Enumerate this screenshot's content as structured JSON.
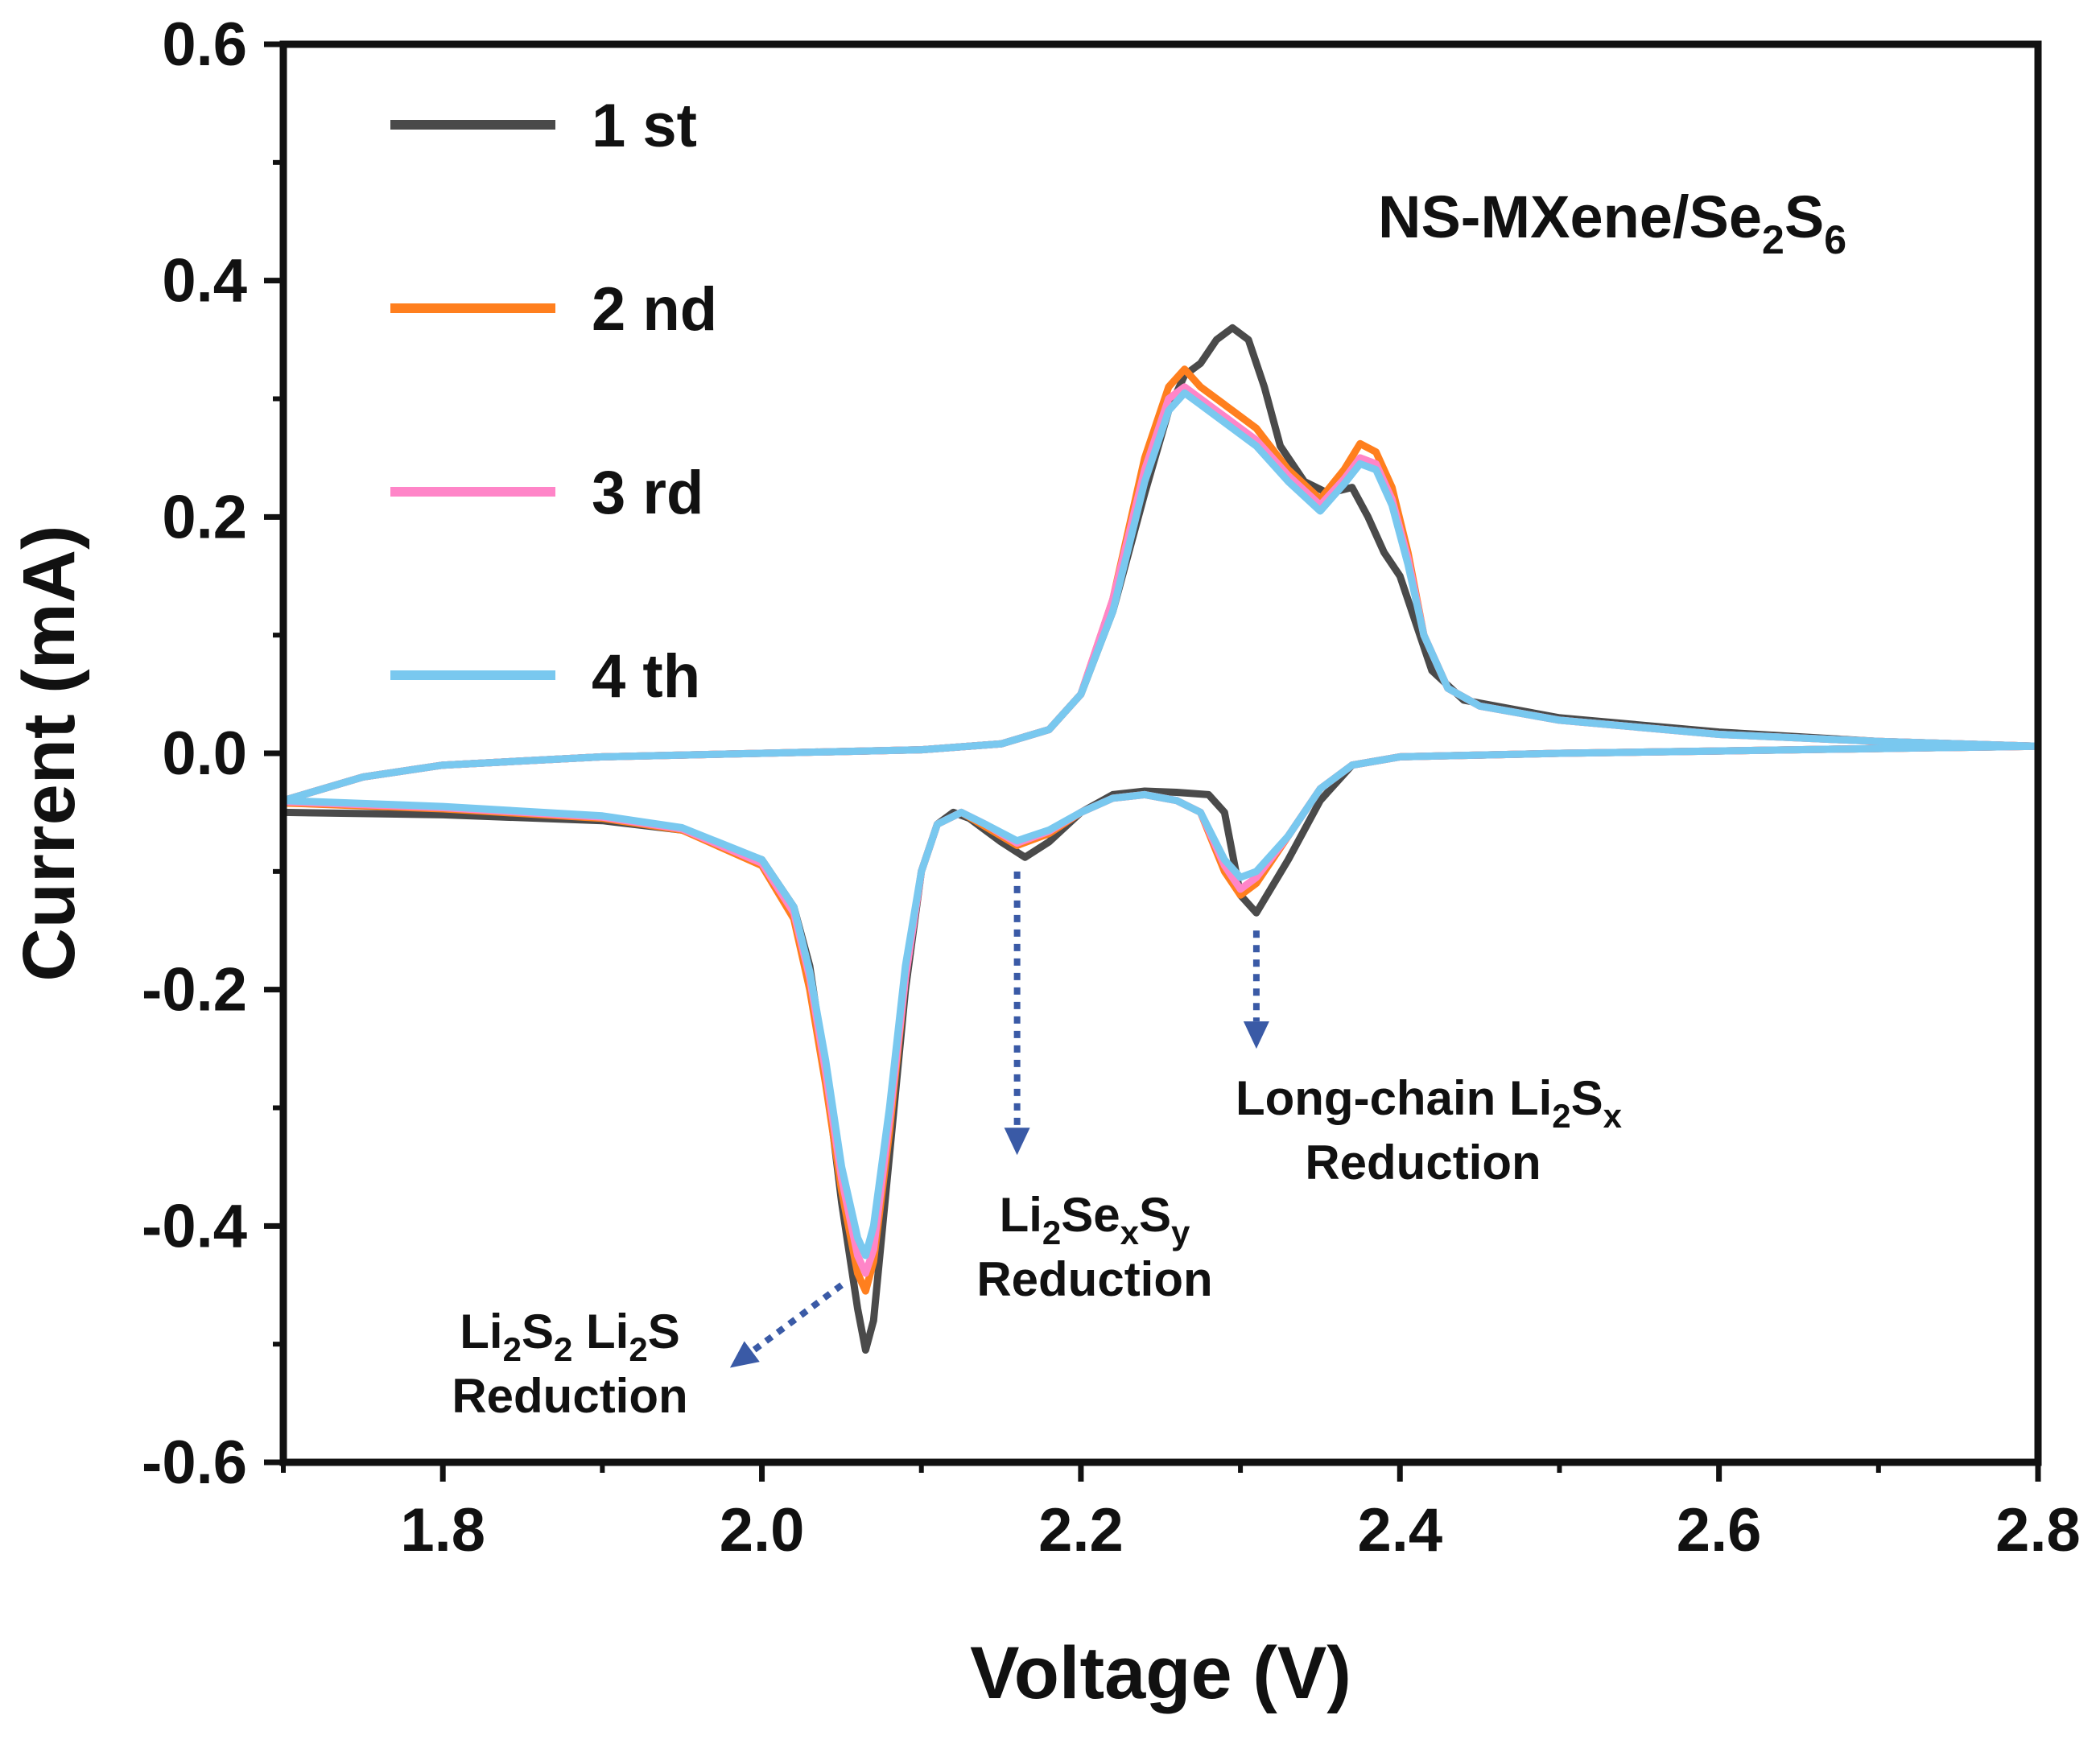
{
  "chart_data": {
    "type": "line",
    "title": "",
    "xlabel": "Voltage (V)",
    "ylabel": "Current (mA)",
    "xlim": [
      1.7,
      2.8
    ],
    "ylim": [
      -0.6,
      0.6
    ],
    "grid": false,
    "legend_position": "top-left",
    "x_ticks": [
      1.8,
      2.0,
      2.2,
      2.4,
      2.6,
      2.8
    ],
    "x_tick_labels": [
      "1.8",
      "2.0",
      "2.2",
      "2.4",
      "2.6",
      "2.8"
    ],
    "y_ticks": [
      0.6,
      0.4,
      0.2,
      0.0,
      -0.2,
      -0.4,
      -0.6
    ],
    "y_tick_labels": [
      "0.6",
      "0.4",
      "0.2",
      "0.0",
      "-0.2",
      "-0.4",
      "-0.6"
    ],
    "sample_label": {
      "main": "NS-MXene/Se",
      "sub1": "2",
      "mid": "S",
      "sub2": "6"
    },
    "series": [
      {
        "name": "1 st",
        "color": "#4a4a4a",
        "anodic": [
          [
            1.7,
            -0.04
          ],
          [
            1.75,
            -0.02
          ],
          [
            1.8,
            -0.01
          ],
          [
            1.9,
            -0.003
          ],
          [
            2.0,
            0.0
          ],
          [
            2.1,
            0.003
          ],
          [
            2.15,
            0.008
          ],
          [
            2.18,
            0.02
          ],
          [
            2.2,
            0.05
          ],
          [
            2.22,
            0.12
          ],
          [
            2.24,
            0.22
          ],
          [
            2.255,
            0.29
          ],
          [
            2.265,
            0.32
          ],
          [
            2.275,
            0.33
          ],
          [
            2.285,
            0.35
          ],
          [
            2.295,
            0.36
          ],
          [
            2.305,
            0.35
          ],
          [
            2.315,
            0.31
          ],
          [
            2.325,
            0.26
          ],
          [
            2.34,
            0.23
          ],
          [
            2.355,
            0.22
          ],
          [
            2.37,
            0.225
          ],
          [
            2.38,
            0.2
          ],
          [
            2.39,
            0.17
          ],
          [
            2.4,
            0.15
          ],
          [
            2.41,
            0.11
          ],
          [
            2.42,
            0.07
          ],
          [
            2.44,
            0.045
          ],
          [
            2.5,
            0.03
          ],
          [
            2.6,
            0.018
          ],
          [
            2.7,
            0.01
          ],
          [
            2.8,
            0.006
          ]
        ],
        "cathodic": [
          [
            2.8,
            0.006
          ],
          [
            2.7,
            0.004
          ],
          [
            2.6,
            0.002
          ],
          [
            2.5,
            0.0
          ],
          [
            2.4,
            -0.003
          ],
          [
            2.37,
            -0.01
          ],
          [
            2.35,
            -0.04
          ],
          [
            2.33,
            -0.09
          ],
          [
            2.31,
            -0.135
          ],
          [
            2.3,
            -0.12
          ],
          [
            2.29,
            -0.05
          ],
          [
            2.28,
            -0.035
          ],
          [
            2.26,
            -0.033
          ],
          [
            2.24,
            -0.032
          ],
          [
            2.22,
            -0.035
          ],
          [
            2.2,
            -0.05
          ],
          [
            2.18,
            -0.075
          ],
          [
            2.165,
            -0.088
          ],
          [
            2.15,
            -0.075
          ],
          [
            2.13,
            -0.055
          ],
          [
            2.12,
            -0.05
          ],
          [
            2.11,
            -0.06
          ],
          [
            2.1,
            -0.1
          ],
          [
            2.09,
            -0.2
          ],
          [
            2.08,
            -0.34
          ],
          [
            2.07,
            -0.48
          ],
          [
            2.065,
            -0.505
          ],
          [
            2.06,
            -0.47
          ],
          [
            2.05,
            -0.38
          ],
          [
            2.04,
            -0.27
          ],
          [
            2.03,
            -0.18
          ],
          [
            2.02,
            -0.13
          ],
          [
            2.0,
            -0.09
          ],
          [
            1.95,
            -0.065
          ],
          [
            1.9,
            -0.057
          ],
          [
            1.8,
            -0.052
          ],
          [
            1.7,
            -0.05
          ]
        ]
      },
      {
        "name": "2 nd",
        "color": "#ff7f1e",
        "anodic": [
          [
            1.7,
            -0.04
          ],
          [
            1.75,
            -0.02
          ],
          [
            1.8,
            -0.01
          ],
          [
            1.9,
            -0.003
          ],
          [
            2.0,
            0.0
          ],
          [
            2.1,
            0.003
          ],
          [
            2.15,
            0.008
          ],
          [
            2.18,
            0.02
          ],
          [
            2.2,
            0.05
          ],
          [
            2.22,
            0.13
          ],
          [
            2.24,
            0.25
          ],
          [
            2.255,
            0.31
          ],
          [
            2.265,
            0.325
          ],
          [
            2.275,
            0.31
          ],
          [
            2.29,
            0.295
          ],
          [
            2.31,
            0.275
          ],
          [
            2.33,
            0.24
          ],
          [
            2.35,
            0.215
          ],
          [
            2.365,
            0.24
          ],
          [
            2.375,
            0.262
          ],
          [
            2.385,
            0.255
          ],
          [
            2.395,
            0.225
          ],
          [
            2.405,
            0.17
          ],
          [
            2.415,
            0.1
          ],
          [
            2.43,
            0.055
          ],
          [
            2.45,
            0.04
          ],
          [
            2.5,
            0.028
          ],
          [
            2.6,
            0.016
          ],
          [
            2.7,
            0.01
          ],
          [
            2.8,
            0.006
          ]
        ],
        "cathodic": [
          [
            2.8,
            0.006
          ],
          [
            2.7,
            0.004
          ],
          [
            2.6,
            0.002
          ],
          [
            2.5,
            0.0
          ],
          [
            2.4,
            -0.003
          ],
          [
            2.37,
            -0.01
          ],
          [
            2.35,
            -0.03
          ],
          [
            2.33,
            -0.07
          ],
          [
            2.31,
            -0.11
          ],
          [
            2.3,
            -0.12
          ],
          [
            2.29,
            -0.1
          ],
          [
            2.275,
            -0.05
          ],
          [
            2.26,
            -0.04
          ],
          [
            2.24,
            -0.035
          ],
          [
            2.22,
            -0.038
          ],
          [
            2.2,
            -0.05
          ],
          [
            2.18,
            -0.068
          ],
          [
            2.16,
            -0.078
          ],
          [
            2.14,
            -0.062
          ],
          [
            2.125,
            -0.05
          ],
          [
            2.11,
            -0.06
          ],
          [
            2.1,
            -0.1
          ],
          [
            2.09,
            -0.19
          ],
          [
            2.08,
            -0.32
          ],
          [
            2.07,
            -0.43
          ],
          [
            2.065,
            -0.455
          ],
          [
            2.06,
            -0.44
          ],
          [
            2.05,
            -0.37
          ],
          [
            2.04,
            -0.28
          ],
          [
            2.03,
            -0.2
          ],
          [
            2.02,
            -0.14
          ],
          [
            2.0,
            -0.095
          ],
          [
            1.95,
            -0.065
          ],
          [
            1.9,
            -0.055
          ],
          [
            1.8,
            -0.047
          ],
          [
            1.7,
            -0.042
          ]
        ]
      },
      {
        "name": "3 rd",
        "color": "#ff85c8",
        "anodic": [
          [
            1.7,
            -0.04
          ],
          [
            1.75,
            -0.02
          ],
          [
            1.8,
            -0.01
          ],
          [
            1.9,
            -0.003
          ],
          [
            2.0,
            0.0
          ],
          [
            2.1,
            0.003
          ],
          [
            2.15,
            0.008
          ],
          [
            2.18,
            0.02
          ],
          [
            2.2,
            0.05
          ],
          [
            2.22,
            0.13
          ],
          [
            2.24,
            0.24
          ],
          [
            2.255,
            0.3
          ],
          [
            2.265,
            0.31
          ],
          [
            2.275,
            0.3
          ],
          [
            2.29,
            0.285
          ],
          [
            2.31,
            0.265
          ],
          [
            2.33,
            0.235
          ],
          [
            2.35,
            0.21
          ],
          [
            2.365,
            0.232
          ],
          [
            2.375,
            0.25
          ],
          [
            2.385,
            0.245
          ],
          [
            2.395,
            0.215
          ],
          [
            2.405,
            0.165
          ],
          [
            2.415,
            0.1
          ],
          [
            2.43,
            0.055
          ],
          [
            2.45,
            0.04
          ],
          [
            2.5,
            0.028
          ],
          [
            2.6,
            0.016
          ],
          [
            2.7,
            0.01
          ],
          [
            2.8,
            0.006
          ]
        ],
        "cathodic": [
          [
            2.8,
            0.006
          ],
          [
            2.7,
            0.004
          ],
          [
            2.6,
            0.002
          ],
          [
            2.5,
            0.0
          ],
          [
            2.4,
            -0.003
          ],
          [
            2.37,
            -0.01
          ],
          [
            2.35,
            -0.03
          ],
          [
            2.33,
            -0.07
          ],
          [
            2.31,
            -0.105
          ],
          [
            2.3,
            -0.115
          ],
          [
            2.29,
            -0.095
          ],
          [
            2.275,
            -0.05
          ],
          [
            2.26,
            -0.04
          ],
          [
            2.24,
            -0.035
          ],
          [
            2.22,
            -0.038
          ],
          [
            2.2,
            -0.05
          ],
          [
            2.18,
            -0.066
          ],
          [
            2.16,
            -0.076
          ],
          [
            2.14,
            -0.06
          ],
          [
            2.125,
            -0.05
          ],
          [
            2.11,
            -0.06
          ],
          [
            2.1,
            -0.1
          ],
          [
            2.09,
            -0.19
          ],
          [
            2.08,
            -0.31
          ],
          [
            2.07,
            -0.42
          ],
          [
            2.065,
            -0.44
          ],
          [
            2.06,
            -0.425
          ],
          [
            2.05,
            -0.36
          ],
          [
            2.04,
            -0.27
          ],
          [
            2.03,
            -0.19
          ],
          [
            2.02,
            -0.135
          ],
          [
            2.0,
            -0.093
          ],
          [
            1.95,
            -0.064
          ],
          [
            1.9,
            -0.054
          ],
          [
            1.8,
            -0.046
          ],
          [
            1.7,
            -0.041
          ]
        ]
      },
      {
        "name": "4 th",
        "color": "#79c8ef",
        "anodic": [
          [
            1.7,
            -0.04
          ],
          [
            1.75,
            -0.02
          ],
          [
            1.8,
            -0.01
          ],
          [
            1.9,
            -0.003
          ],
          [
            2.0,
            0.0
          ],
          [
            2.1,
            0.003
          ],
          [
            2.15,
            0.008
          ],
          [
            2.18,
            0.02
          ],
          [
            2.2,
            0.05
          ],
          [
            2.22,
            0.12
          ],
          [
            2.24,
            0.23
          ],
          [
            2.255,
            0.29
          ],
          [
            2.265,
            0.305
          ],
          [
            2.275,
            0.295
          ],
          [
            2.29,
            0.28
          ],
          [
            2.31,
            0.26
          ],
          [
            2.33,
            0.23
          ],
          [
            2.35,
            0.205
          ],
          [
            2.365,
            0.228
          ],
          [
            2.375,
            0.245
          ],
          [
            2.385,
            0.24
          ],
          [
            2.395,
            0.21
          ],
          [
            2.405,
            0.16
          ],
          [
            2.415,
            0.1
          ],
          [
            2.43,
            0.055
          ],
          [
            2.45,
            0.04
          ],
          [
            2.5,
            0.028
          ],
          [
            2.6,
            0.016
          ],
          [
            2.7,
            0.01
          ],
          [
            2.8,
            0.006
          ]
        ],
        "cathodic": [
          [
            2.8,
            0.006
          ],
          [
            2.7,
            0.004
          ],
          [
            2.6,
            0.002
          ],
          [
            2.5,
            0.0
          ],
          [
            2.4,
            -0.003
          ],
          [
            2.37,
            -0.01
          ],
          [
            2.35,
            -0.03
          ],
          [
            2.33,
            -0.07
          ],
          [
            2.31,
            -0.1
          ],
          [
            2.3,
            -0.105
          ],
          [
            2.29,
            -0.09
          ],
          [
            2.275,
            -0.05
          ],
          [
            2.26,
            -0.04
          ],
          [
            2.24,
            -0.035
          ],
          [
            2.22,
            -0.038
          ],
          [
            2.2,
            -0.05
          ],
          [
            2.18,
            -0.065
          ],
          [
            2.16,
            -0.074
          ],
          [
            2.14,
            -0.06
          ],
          [
            2.125,
            -0.05
          ],
          [
            2.11,
            -0.06
          ],
          [
            2.1,
            -0.1
          ],
          [
            2.09,
            -0.18
          ],
          [
            2.08,
            -0.3
          ],
          [
            2.07,
            -0.4
          ],
          [
            2.065,
            -0.425
          ],
          [
            2.06,
            -0.41
          ],
          [
            2.05,
            -0.35
          ],
          [
            2.04,
            -0.26
          ],
          [
            2.03,
            -0.185
          ],
          [
            2.02,
            -0.13
          ],
          [
            2.0,
            -0.09
          ],
          [
            1.95,
            -0.063
          ],
          [
            1.9,
            -0.053
          ],
          [
            1.8,
            -0.045
          ],
          [
            1.7,
            -0.04
          ]
        ]
      }
    ],
    "annotations": [
      {
        "id": "long-chain",
        "color": "#3a5aa6",
        "line1": {
          "pre": "Long-chain Li",
          "sub1": "2",
          "mid": "S",
          "sub2": "x",
          "post": ""
        },
        "line2": "Reduction",
        "arrow_from": [
          2.31,
          -0.15
        ],
        "arrow_to": [
          2.31,
          -0.25
        ],
        "text_at": [
          2.325,
          -0.29
        ]
      },
      {
        "id": "li2sexsy",
        "color": "#3a5aa6",
        "line1": {
          "pre": "Li",
          "sub1": "2",
          "mid": "Se",
          "sub2": "x",
          "post": "S",
          "sub3": "y"
        },
        "line2": "Reduction",
        "arrow_from": [
          2.16,
          -0.1
        ],
        "arrow_to": [
          2.16,
          -0.34
        ],
        "text_at": [
          2.17,
          -0.39
        ]
      },
      {
        "id": "li2s2",
        "color": "#3a5aa6",
        "line1": {
          "pre": "Li",
          "sub1": "2",
          "mid": "S",
          "sub2": "2",
          "post": " Li",
          "sub3": "2",
          "tail": "S"
        },
        "line2": "Reduction",
        "arrow_from": [
          2.05,
          -0.45
        ],
        "arrow_to": [
          1.98,
          -0.52
        ],
        "text_at": [
          1.88,
          -0.485
        ]
      }
    ]
  }
}
